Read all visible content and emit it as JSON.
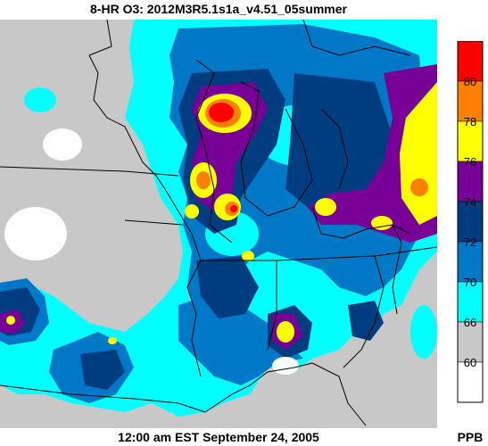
{
  "title": "8-HR O3: 2012M3R5.1s1a_v4.51_05summer",
  "timestamp": "12:00 am EST September 24, 2005",
  "units": "PPB",
  "colors": {
    "background_land": "#c8c8c8",
    "boundary": "#000000",
    "white_bin": "#ffffff"
  },
  "legend": {
    "bins": [
      {
        "color": "#ff0000",
        "label": ""
      },
      {
        "color": "#ff8000",
        "label": "80"
      },
      {
        "color": "#ffff00",
        "label": "78"
      },
      {
        "color": "#780096",
        "label": "76"
      },
      {
        "color": "#003c80",
        "label": "74"
      },
      {
        "color": "#0078c8",
        "label": "72"
      },
      {
        "color": "#00ffff",
        "label": "70"
      },
      {
        "color": "#c8c8c8",
        "label": "66"
      },
      {
        "color": "#ffffff",
        "label": "60"
      }
    ]
  }
}
